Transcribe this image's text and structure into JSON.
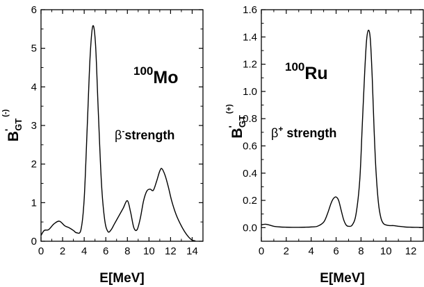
{
  "chart_data": [
    {
      "type": "line",
      "xlabel": "E[MeV]",
      "ylabel": {
        "main": "B",
        "prime": "'",
        "sub": "GT",
        "sup": "(-)"
      },
      "xlim": [
        0,
        15
      ],
      "ylim": [
        0,
        6
      ],
      "xticks": [
        "0",
        "2",
        "4",
        "6",
        "8",
        "10",
        "12",
        "14"
      ],
      "yticks": [
        "0",
        "1",
        "2",
        "3",
        "4",
        "5",
        "6"
      ],
      "annotations": [
        {
          "sup": "100",
          "main": "Mo"
        },
        {
          "pre": "β",
          "sup": "-",
          "post": "strength"
        }
      ],
      "x": [
        0,
        0.3,
        0.7,
        1.2,
        1.7,
        2.2,
        2.6,
        3.0,
        3.3,
        3.7,
        4.0,
        4.3,
        4.55,
        4.8,
        5.05,
        5.3,
        5.6,
        5.9,
        6.2,
        6.5,
        6.8,
        7.2,
        7.6,
        8.0,
        8.3,
        8.6,
        8.9,
        9.2,
        9.5,
        9.8,
        10.1,
        10.4,
        10.7,
        11.0,
        11.2,
        11.5,
        11.8,
        12.1,
        12.5,
        12.9,
        13.3,
        13.7,
        14.0,
        14.3
      ],
      "y": [
        0.15,
        0.28,
        0.3,
        0.45,
        0.52,
        0.4,
        0.35,
        0.28,
        0.22,
        0.3,
        1.1,
        3.1,
        4.8,
        5.58,
        5.1,
        3.4,
        1.5,
        0.55,
        0.25,
        0.3,
        0.45,
        0.65,
        0.85,
        1.05,
        0.75,
        0.35,
        0.3,
        0.6,
        1.05,
        1.3,
        1.35,
        1.32,
        1.55,
        1.82,
        1.88,
        1.7,
        1.4,
        1.05,
        0.7,
        0.45,
        0.25,
        0.1,
        0.03,
        0.01
      ]
    },
    {
      "type": "line",
      "xlabel": "E[MeV]",
      "ylabel": {
        "main": "B",
        "prime": "'",
        "sub": "GT",
        "sup": "(+)"
      },
      "xlim": [
        0,
        13
      ],
      "ylim": [
        -0.1,
        1.6
      ],
      "xticks": [
        "0",
        "2",
        "4",
        "6",
        "8",
        "10",
        "12"
      ],
      "yticks": [
        "0.0",
        "0.2",
        "0.4",
        "0.6",
        "0.8",
        "1.0",
        "1.2",
        "1.4",
        "1.6"
      ],
      "annotations": [
        {
          "sup": "100",
          "main": "Ru"
        },
        {
          "pre": "β",
          "sup": "+",
          "post": " strength"
        }
      ],
      "x": [
        0,
        0.3,
        0.6,
        1.0,
        1.5,
        2.0,
        2.5,
        3.0,
        3.5,
        4.0,
        4.5,
        5.0,
        5.3,
        5.6,
        5.8,
        6.0,
        6.2,
        6.4,
        6.6,
        6.8,
        7.0,
        7.3,
        7.6,
        7.9,
        8.1,
        8.3,
        8.45,
        8.6,
        8.75,
        8.9,
        9.05,
        9.2,
        9.4,
        9.6,
        9.8,
        10.0,
        10.3,
        10.6,
        11.0,
        11.5,
        12.0,
        12.5,
        13.0
      ],
      "y": [
        0.02,
        0.025,
        0.02,
        0.01,
        0.005,
        0.003,
        0.002,
        0.002,
        0.003,
        0.005,
        0.01,
        0.04,
        0.1,
        0.18,
        0.215,
        0.225,
        0.2,
        0.13,
        0.06,
        0.02,
        0.01,
        0.02,
        0.1,
        0.35,
        0.75,
        1.15,
        1.38,
        1.45,
        1.38,
        1.1,
        0.72,
        0.42,
        0.18,
        0.07,
        0.03,
        0.02,
        0.015,
        0.015,
        0.01,
        0.005,
        0.003,
        0.002,
        0.001
      ]
    }
  ]
}
